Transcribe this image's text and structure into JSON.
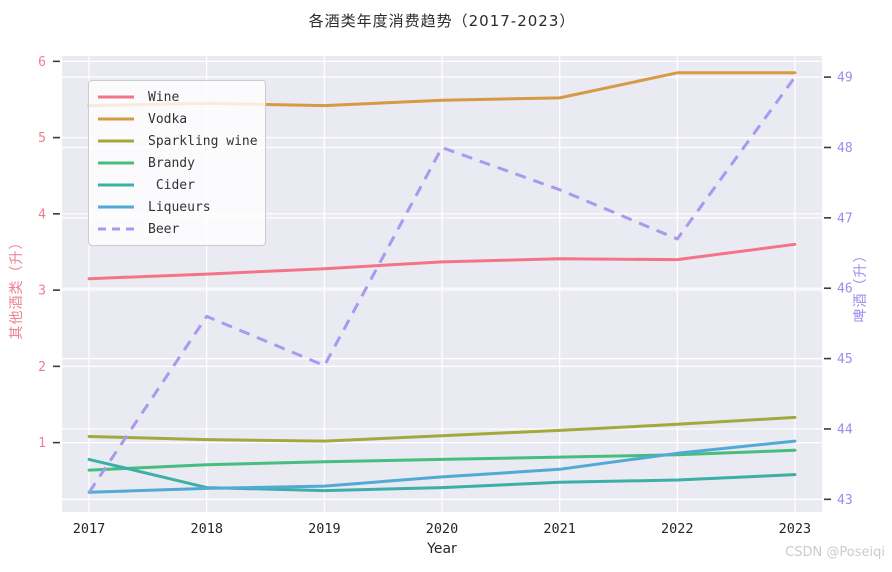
{
  "title": "各酒类年度消费趋势（2017-2023）",
  "watermark": "CSDN @Poseiqi",
  "chart_data": {
    "type": "line",
    "x": [
      2017,
      2018,
      2019,
      2020,
      2021,
      2022,
      2023
    ],
    "xlabel": "Year",
    "xlim": [
      2016.77,
      2023.23
    ],
    "grid": true,
    "background": "#eaeaf2",
    "left_axis": {
      "label": "其他酒类（升）",
      "ticks": [
        1,
        2,
        3,
        4,
        5,
        6
      ],
      "ylim": [
        0.09,
        6.07
      ],
      "tick_color": "#ee7d90"
    },
    "right_axis": {
      "label": "啤酒（升）",
      "ticks": [
        43,
        44,
        45,
        46,
        47,
        48,
        49
      ],
      "ylim": [
        42.82,
        49.3
      ],
      "tick_color": "#9b8ced"
    },
    "x_tick_color": "#262626",
    "legend_position": "upper-left",
    "series": [
      {
        "name": "Wine",
        "axis": "left",
        "color": "#f27586",
        "dash": false,
        "values": [
          3.15,
          3.21,
          3.28,
          3.37,
          3.41,
          3.4,
          3.6
        ]
      },
      {
        "name": "Vodka",
        "axis": "left",
        "color": "#d49a44",
        "dash": false,
        "values": [
          5.42,
          5.45,
          5.42,
          5.49,
          5.52,
          5.85,
          5.85
        ]
      },
      {
        "name": "Sparkling wine",
        "axis": "left",
        "color": "#a3a93d",
        "dash": false,
        "values": [
          1.08,
          1.04,
          1.02,
          1.09,
          1.16,
          1.24,
          1.33
        ]
      },
      {
        "name": "Brandy",
        "axis": "left",
        "color": "#47bd7e",
        "dash": false,
        "values": [
          0.64,
          0.71,
          0.75,
          0.78,
          0.81,
          0.84,
          0.9
        ]
      },
      {
        "name": " Cider",
        "axis": "left",
        "color": "#3cafa6",
        "dash": false,
        "values": [
          0.78,
          0.41,
          0.37,
          0.41,
          0.48,
          0.51,
          0.58
        ]
      },
      {
        "name": "Liqueurs",
        "axis": "left",
        "color": "#51aad5",
        "dash": false,
        "values": [
          0.35,
          0.4,
          0.43,
          0.55,
          0.65,
          0.86,
          1.02
        ]
      },
      {
        "name": "Beer",
        "axis": "right",
        "color": "#a79aef",
        "dash": true,
        "values": [
          43.1,
          45.6,
          44.9,
          48.0,
          47.4,
          46.7,
          49.0
        ]
      }
    ]
  }
}
